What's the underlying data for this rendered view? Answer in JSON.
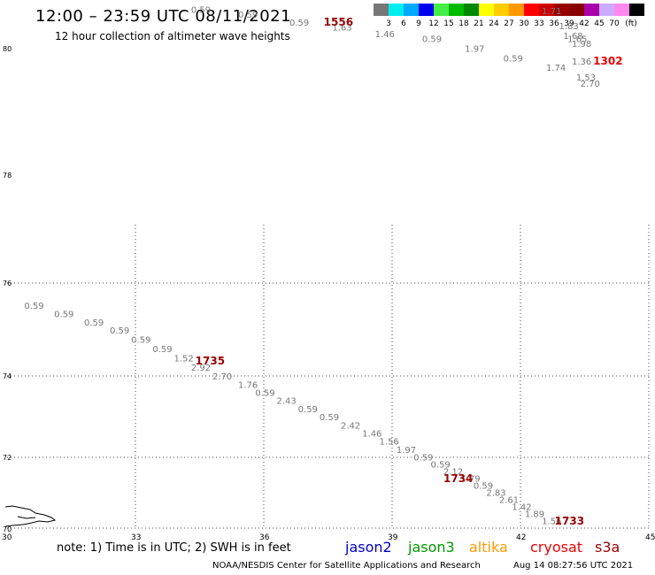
{
  "header": {
    "title": "12:00 – 23:59 UTC 08/11/2021",
    "subtitle": "12 hour collection of altimeter wave heights"
  },
  "color_scale": {
    "swatches": [
      "#777777",
      "#00eeee",
      "#00aaff",
      "#0000ee",
      "#44ee44",
      "#00bb00",
      "#008800",
      "#ffff00",
      "#ffcc00",
      "#ff9900",
      "#ff0000",
      "#cc0000",
      "#990000",
      "#880000",
      "#aa00aa",
      "#ccaaff",
      "#ff88ee",
      "#000000"
    ],
    "labels": [
      "3",
      "6",
      "9",
      "12",
      "15",
      "18",
      "21",
      "24",
      "27",
      "30",
      "33",
      "36",
      "39",
      "42",
      "45",
      "70",
      "(ft)"
    ]
  },
  "axes": {
    "x_ticks": [
      "30",
      "33",
      "36",
      "39",
      "42",
      "45"
    ],
    "y_ticks": [
      "80",
      "78",
      "76",
      "74",
      "72",
      "70"
    ],
    "x_domain": [
      30,
      45
    ],
    "y_domain": [
      70,
      80
    ]
  },
  "colors": {
    "grid": "#444444",
    "wave_label": "#777777",
    "time_label_dark": "#990000",
    "time_label_red": "#ee0000"
  },
  "wave_heights": [
    {
      "lon": 30.4,
      "lat": 75.45,
      "text": "0.59"
    },
    {
      "lon": 31.1,
      "lat": 75.27,
      "text": "0.59"
    },
    {
      "lon": 31.8,
      "lat": 75.09,
      "text": "0.59"
    },
    {
      "lon": 32.4,
      "lat": 74.91,
      "text": "0.59"
    },
    {
      "lon": 32.9,
      "lat": 74.71,
      "text": "0.59"
    },
    {
      "lon": 33.4,
      "lat": 74.51,
      "text": "0.59"
    },
    {
      "lon": 33.9,
      "lat": 74.31,
      "text": "1.52"
    },
    {
      "lon": 34.3,
      "lat": 74.11,
      "text": "2.92"
    },
    {
      "lon": 34.8,
      "lat": 73.91,
      "text": "2.70"
    },
    {
      "lon": 35.4,
      "lat": 73.71,
      "text": "1.76"
    },
    {
      "lon": 35.8,
      "lat": 73.51,
      "text": "0.59"
    },
    {
      "lon": 36.3,
      "lat": 73.31,
      "text": "2.43"
    },
    {
      "lon": 36.8,
      "lat": 73.11,
      "text": "0.59"
    },
    {
      "lon": 37.3,
      "lat": 72.91,
      "text": "0.59"
    },
    {
      "lon": 37.8,
      "lat": 72.71,
      "text": "2.42"
    },
    {
      "lon": 38.3,
      "lat": 72.51,
      "text": "1.46"
    },
    {
      "lon": 38.7,
      "lat": 72.31,
      "text": "1.56"
    },
    {
      "lon": 39.1,
      "lat": 72.11,
      "text": "1.97"
    },
    {
      "lon": 39.5,
      "lat": 71.91,
      "text": "0.59"
    },
    {
      "lon": 39.9,
      "lat": 71.71,
      "text": "0.59"
    },
    {
      "lon": 40.2,
      "lat": 71.51,
      "text": "2.12"
    },
    {
      "lon": 40.6,
      "lat": 71.31,
      "text": "1.79"
    },
    {
      "lon": 40.9,
      "lat": 71.11,
      "text": "0.59"
    },
    {
      "lon": 41.2,
      "lat": 70.91,
      "text": "2.83"
    },
    {
      "lon": 41.5,
      "lat": 70.71,
      "text": "2.61"
    },
    {
      "lon": 41.8,
      "lat": 70.51,
      "text": "1.42"
    },
    {
      "lon": 42.1,
      "lat": 70.31,
      "text": "1.89"
    },
    {
      "lon": 42.5,
      "lat": 70.11,
      "text": "1.56"
    },
    {
      "lon": 34.3,
      "lat": 81.1,
      "text": "0.59"
    },
    {
      "lon": 35.4,
      "lat": 80.95,
      "text": "0.59"
    },
    {
      "lon": 36.6,
      "lat": 80.7,
      "text": "0.59"
    },
    {
      "lon": 37.6,
      "lat": 80.55,
      "text": "1.63"
    },
    {
      "lon": 38.6,
      "lat": 80.35,
      "text": "1.46"
    },
    {
      "lon": 39.7,
      "lat": 80.2,
      "text": "0.59"
    },
    {
      "lon": 40.7,
      "lat": 79.95,
      "text": "1.97"
    },
    {
      "lon": 41.6,
      "lat": 79.8,
      "text": "0.59"
    },
    {
      "lon": 42.6,
      "lat": 79.65,
      "text": "1.74"
    },
    {
      "lon": 43.4,
      "lat": 79.4,
      "text": "2.70"
    },
    {
      "lon": 42.5,
      "lat": 81.05,
      "text": "1.71"
    },
    {
      "lon": 42.9,
      "lat": 80.6,
      "text": "1.83"
    },
    {
      "lon": 43.0,
      "lat": 80.3,
      "text": "1.68"
    },
    {
      "lon": 43.1,
      "lat": 80.2,
      "text": "1.65"
    },
    {
      "lon": 43.2,
      "lat": 80.05,
      "text": "1.98"
    },
    {
      "lon": 43.2,
      "lat": 79.75,
      "text": "1.36"
    },
    {
      "lon": 43.3,
      "lat": 79.5,
      "text": "1.53"
    }
  ],
  "pass_times": [
    {
      "lon": 34.4,
      "lat": 74.25,
      "text": "1735",
      "color": "#990000"
    },
    {
      "lon": 37.4,
      "lat": 80.7,
      "text": "1556",
      "color": "#990000"
    },
    {
      "lon": 40.2,
      "lat": 71.3,
      "text": "1734",
      "color": "#990000"
    },
    {
      "lon": 43.7,
      "lat": 79.75,
      "text": "1302",
      "color": "#ee0000"
    },
    {
      "lon": 42.8,
      "lat": 70.1,
      "text": "1733",
      "color": "#990000"
    }
  ],
  "footer": {
    "note": "note:  1) Time is in UTC;  2) SWH is in feet",
    "credit": "NOAA/NESDIS Center for Satellite Applications and Research",
    "timestamp": "Aug 14 08:27:56 UTC 2021"
  },
  "legend": [
    {
      "name": "jason2",
      "color": "#0000cc"
    },
    {
      "name": "jason3",
      "color": "#009900"
    },
    {
      "name": "altika",
      "color": "#ff9900"
    },
    {
      "name": "cryosat",
      "color": "#ee0000"
    },
    {
      "name": "s3a",
      "color": "#990000"
    }
  ]
}
